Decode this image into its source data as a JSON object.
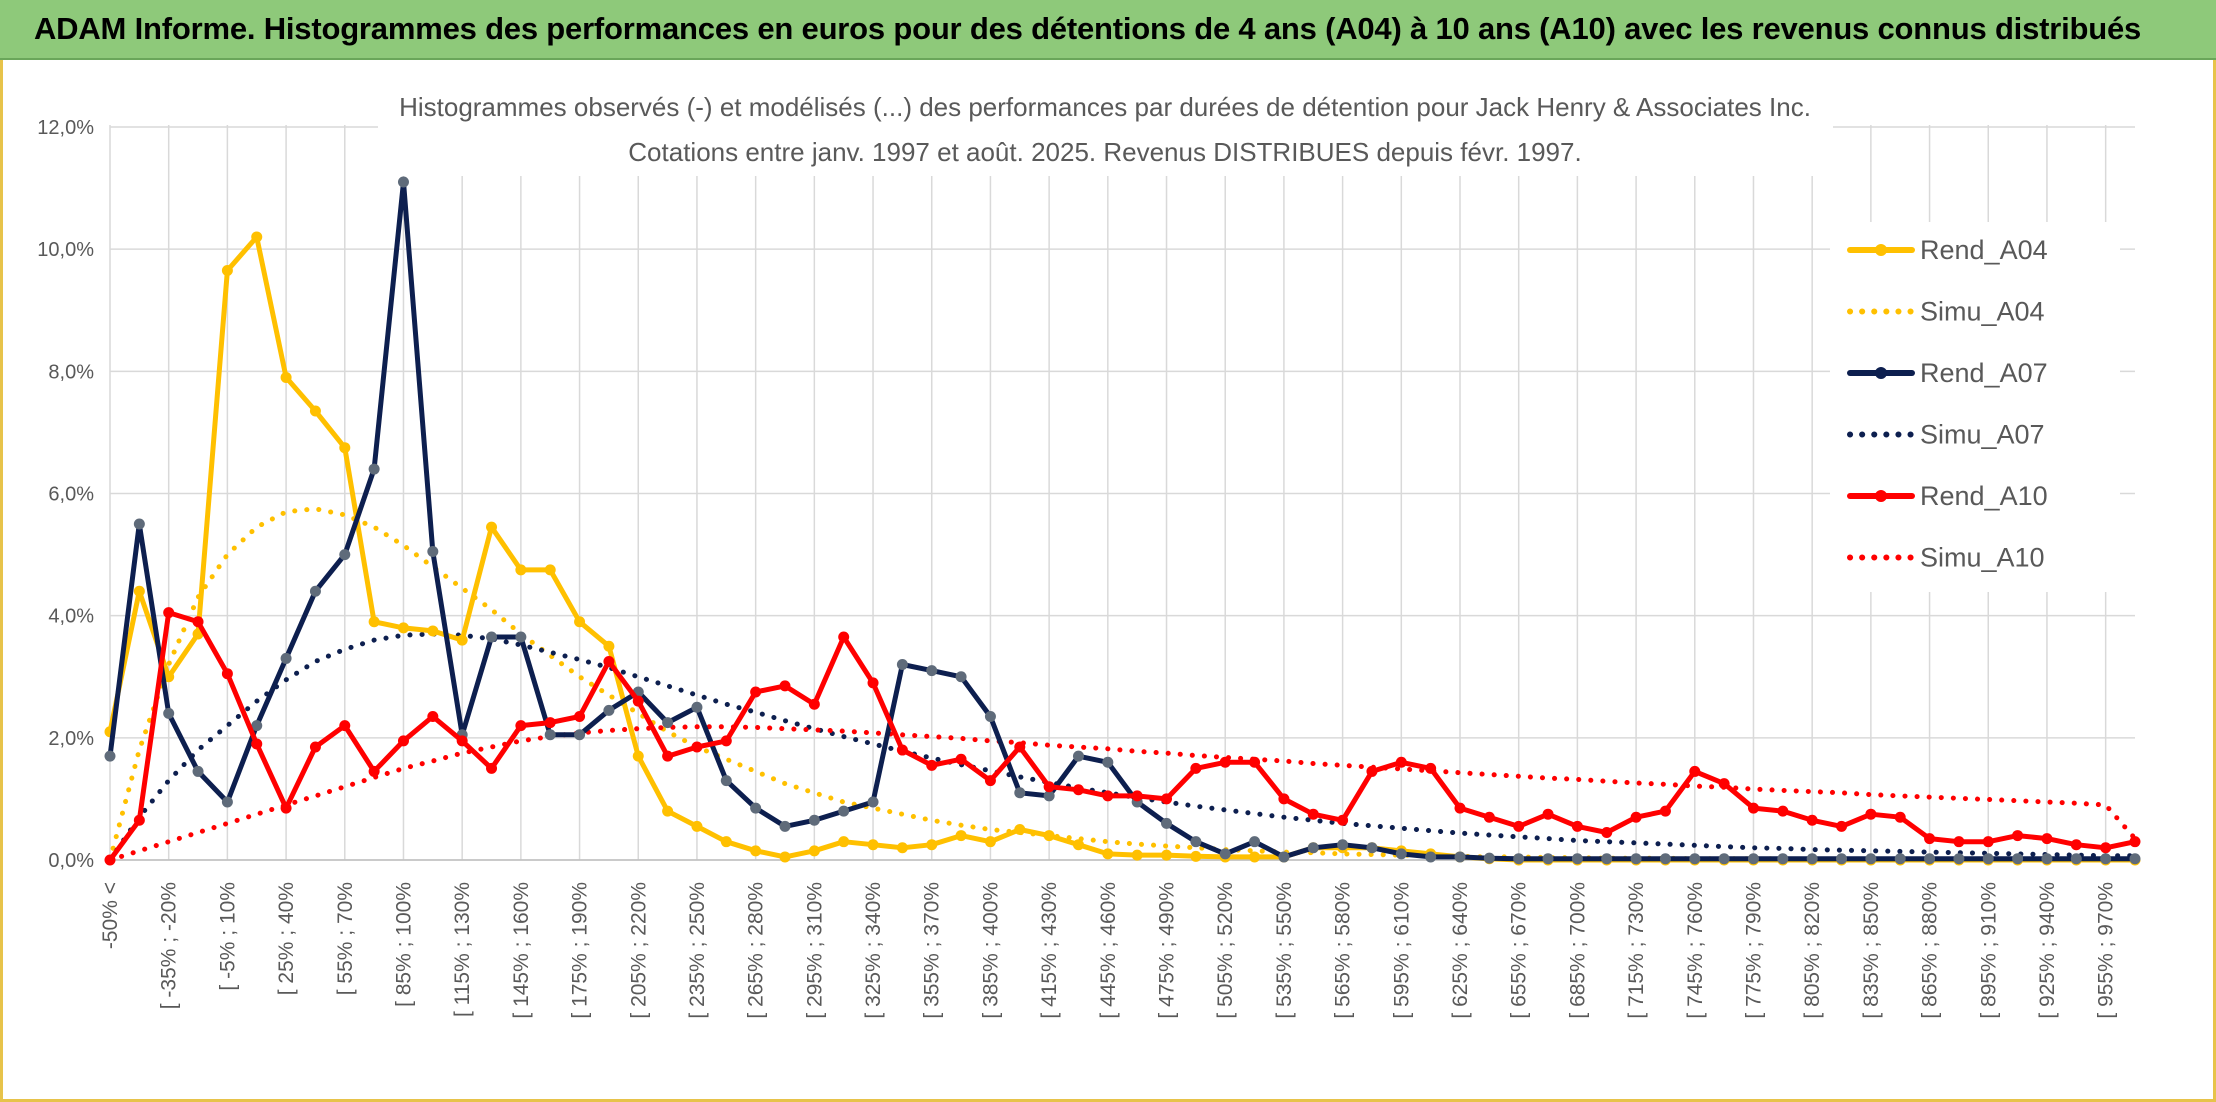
{
  "header": {
    "title": "ADAM Informe. Histogrammes des performances en euros pour des détentions de 4 ans (A04) à 10 ans (A10) avec les revenus connus distribués"
  },
  "chart_data": {
    "type": "line",
    "title": "Histogrammes observés (-) et modélisés (...) des performances par durées de détention pour Jack Henry & Associates Inc.",
    "subtitle": "Cotations entre janv. 1997 et août. 2025. Revenus DISTRIBUES depuis févr. 1997.",
    "xlabel": "",
    "ylabel": "",
    "ylim": [
      0,
      12
    ],
    "yticks": [
      "0,0%",
      "2,0%",
      "4,0%",
      "6,0%",
      "8,0%",
      "10,0%",
      "12,0%"
    ],
    "grid": true,
    "legend_position": "right",
    "x_labels": [
      "-50% <",
      "[ -35% ; -20%",
      "[ -5% ; 10%",
      "[ 25% ; 40%",
      "[ 55% ; 70%",
      "[ 85% ; 100%",
      "[ 115% ; 130%",
      "[ 145% ; 160%",
      "[ 175% ; 190%",
      "[ 205% ; 220%",
      "[ 235% ; 250%",
      "[ 265% ; 280%",
      "[ 295% ; 310%",
      "[ 325% ; 340%",
      "[ 355% ; 370%",
      "[ 385% ; 400%",
      "[ 415% ; 430%",
      "[ 445% ; 460%",
      "[ 475% ; 490%",
      "[ 505% ; 520%",
      "[ 535% ; 550%",
      "[ 565% ; 580%",
      "[ 595% ; 610%",
      "[ 625% ; 640%",
      "[ 655% ; 670%",
      "[ 685% ; 700%",
      "[ 715% ; 730%",
      "[ 745% ; 760%",
      "[ 775% ; 790%",
      "[ 805% ; 820%",
      "[ 835% ; 850%",
      "[ 865% ; 880%",
      "[ 895% ; 910%",
      "[ 925% ; 940%",
      "[ 955% ; 970%"
    ],
    "series": [
      {
        "name": "Rend_A04",
        "style": "solid",
        "color": "#FFC000",
        "values": [
          2.1,
          4.4,
          3.0,
          3.7,
          9.65,
          10.2,
          7.9,
          7.35,
          6.75,
          3.9,
          3.8,
          3.75,
          3.6,
          5.45,
          4.75,
          4.75,
          3.9,
          3.5,
          1.7,
          0.8,
          0.55,
          0.3,
          0.15,
          0.05,
          0.15,
          0.3,
          0.25,
          0.2,
          0.25,
          0.4,
          0.3,
          0.5,
          0.4,
          0.25,
          0.1,
          0.08,
          0.08,
          0.06,
          0.05,
          0.05,
          0.05,
          0.2,
          0.2,
          0.2,
          0.15,
          0.1,
          0.05,
          0.02,
          0.0,
          0.0,
          0.0,
          0.0,
          0.0,
          0.0,
          0.0,
          0.0,
          0.0,
          0.0,
          0.0,
          0.0,
          0.0,
          0.0,
          0.0,
          0.0,
          0.0,
          0.0,
          0.0,
          0.0,
          0.0,
          0.0
        ]
      },
      {
        "name": "Simu_A04",
        "style": "dotted",
        "color": "#FFC000",
        "values": [
          0.0,
          1.8,
          3.2,
          4.3,
          5.0,
          5.45,
          5.7,
          5.75,
          5.65,
          5.45,
          5.15,
          4.8,
          4.45,
          4.1,
          3.7,
          3.35,
          3.0,
          2.7,
          2.4,
          2.1,
          1.85,
          1.65,
          1.45,
          1.25,
          1.1,
          0.95,
          0.85,
          0.75,
          0.65,
          0.57,
          0.5,
          0.45,
          0.4,
          0.35,
          0.3,
          0.26,
          0.23,
          0.2,
          0.17,
          0.15,
          0.13,
          0.12,
          0.1,
          0.09,
          0.08,
          0.07,
          0.06,
          0.05,
          0.05,
          0.04,
          0.04,
          0.03,
          0.03,
          0.03,
          0.02,
          0.02,
          0.02,
          0.02,
          0.01,
          0.01,
          0.01,
          0.01,
          0.01,
          0.01,
          0.01,
          0.01,
          0.0,
          0.0,
          0.0,
          0.0
        ]
      },
      {
        "name": "Rend_A07",
        "style": "solid",
        "color": "#0D1F4F",
        "values": [
          1.7,
          5.5,
          2.4,
          1.45,
          0.95,
          2.2,
          3.3,
          4.4,
          5.0,
          6.4,
          11.1,
          5.05,
          2.05,
          3.65,
          3.65,
          2.05,
          2.05,
          2.45,
          2.75,
          2.25,
          2.5,
          1.3,
          0.85,
          0.55,
          0.65,
          0.8,
          0.95,
          3.2,
          3.1,
          3.0,
          2.35,
          1.1,
          1.05,
          1.7,
          1.6,
          0.95,
          0.6,
          0.3,
          0.1,
          0.3,
          0.05,
          0.2,
          0.25,
          0.2,
          0.1,
          0.05,
          0.05,
          0.03,
          0.02,
          0.02,
          0.02,
          0.02,
          0.02,
          0.02,
          0.02,
          0.02,
          0.02,
          0.02,
          0.02,
          0.02,
          0.02,
          0.02,
          0.02,
          0.02,
          0.02,
          0.02,
          0.02,
          0.02,
          0.02,
          0.02
        ]
      },
      {
        "name": "Simu_A07",
        "style": "dotted",
        "color": "#0D1F4F",
        "values": [
          0.0,
          0.7,
          1.3,
          1.8,
          2.2,
          2.6,
          2.95,
          3.25,
          3.45,
          3.6,
          3.68,
          3.7,
          3.68,
          3.62,
          3.52,
          3.4,
          3.28,
          3.15,
          3.0,
          2.85,
          2.7,
          2.55,
          2.42,
          2.28,
          2.15,
          2.02,
          1.9,
          1.78,
          1.67,
          1.56,
          1.46,
          1.36,
          1.27,
          1.18,
          1.1,
          1.02,
          0.95,
          0.88,
          0.82,
          0.76,
          0.7,
          0.65,
          0.6,
          0.56,
          0.52,
          0.48,
          0.44,
          0.41,
          0.38,
          0.35,
          0.32,
          0.3,
          0.28,
          0.26,
          0.24,
          0.22,
          0.2,
          0.19,
          0.17,
          0.16,
          0.15,
          0.14,
          0.13,
          0.12,
          0.11,
          0.1,
          0.09,
          0.08,
          0.07,
          0.07
        ]
      },
      {
        "name": "Rend_A10",
        "style": "solid",
        "color": "#FF0000",
        "values": [
          0.0,
          0.65,
          4.05,
          3.9,
          3.05,
          1.9,
          0.85,
          1.85,
          2.2,
          1.45,
          1.95,
          2.35,
          1.95,
          1.5,
          2.2,
          2.25,
          2.35,
          3.25,
          2.6,
          1.7,
          1.85,
          1.95,
          2.75,
          2.85,
          2.55,
          3.65,
          2.9,
          1.8,
          1.55,
          1.65,
          1.3,
          1.85,
          1.2,
          1.15,
          1.05,
          1.05,
          1.0,
          1.5,
          1.6,
          1.6,
          1.0,
          0.75,
          0.65,
          1.45,
          1.6,
          1.5,
          0.85,
          0.7,
          0.55,
          0.75,
          0.55,
          0.45,
          0.7,
          0.8,
          1.45,
          1.25,
          0.85,
          0.8,
          0.65,
          0.55,
          0.75,
          0.7,
          0.35,
          0.3,
          0.3,
          0.4,
          0.35,
          0.25,
          0.2,
          0.3
        ]
      },
      {
        "name": "Simu_A10",
        "style": "dotted",
        "color": "#FF0000",
        "values": [
          0.0,
          0.15,
          0.3,
          0.45,
          0.6,
          0.75,
          0.9,
          1.05,
          1.2,
          1.35,
          1.5,
          1.62,
          1.75,
          1.85,
          1.95,
          2.02,
          2.08,
          2.12,
          2.15,
          2.17,
          2.18,
          2.18,
          2.17,
          2.15,
          2.13,
          2.11,
          2.08,
          2.05,
          2.02,
          1.99,
          1.95,
          1.92,
          1.88,
          1.85,
          1.82,
          1.78,
          1.75,
          1.71,
          1.68,
          1.65,
          1.62,
          1.58,
          1.55,
          1.52,
          1.49,
          1.46,
          1.43,
          1.4,
          1.37,
          1.34,
          1.32,
          1.29,
          1.26,
          1.24,
          1.21,
          1.19,
          1.16,
          1.14,
          1.12,
          1.1,
          1.07,
          1.05,
          1.03,
          1.01,
          0.99,
          0.97,
          0.95,
          0.93,
          0.9,
          0.35
        ]
      }
    ]
  }
}
